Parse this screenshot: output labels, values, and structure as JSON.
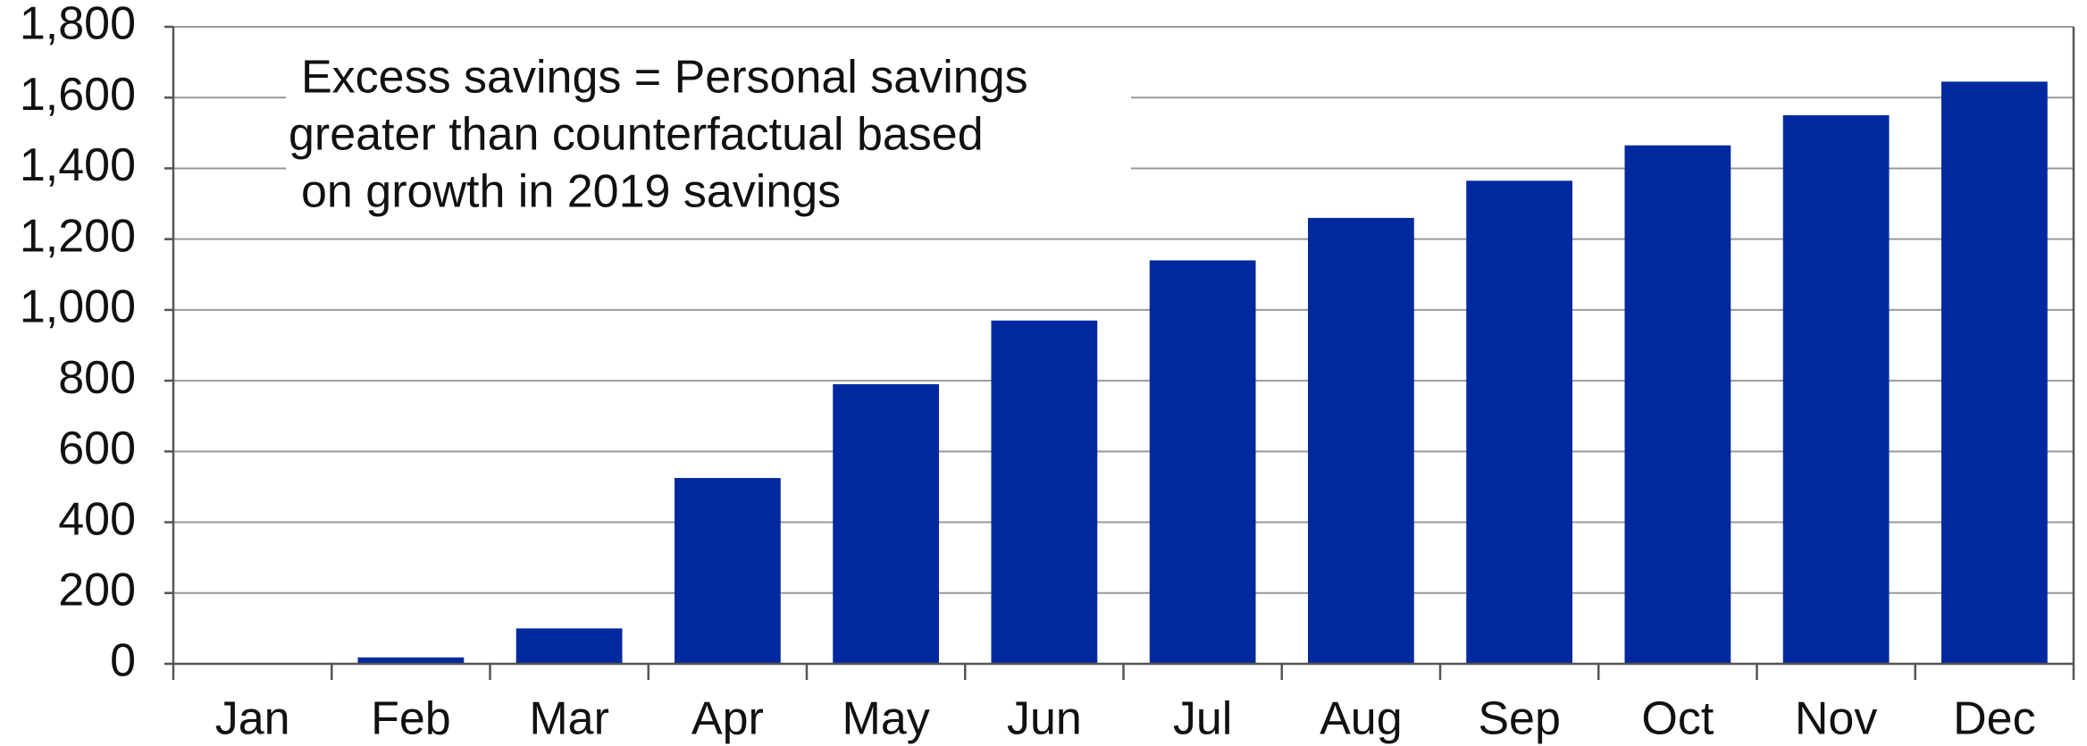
{
  "chart_data": {
    "type": "bar",
    "annotation": [
      "Excess savings = Personal savings",
      "greater than counterfactual based",
      "on growth in 2019 savings"
    ],
    "categories": [
      "Jan",
      "Feb",
      "Mar",
      "Apr",
      "May",
      "Jun",
      "Jul",
      "Aug",
      "Sep",
      "Oct",
      "Nov",
      "Dec"
    ],
    "values": [
      0,
      18,
      100,
      525,
      790,
      970,
      1140,
      1260,
      1365,
      1465,
      1550,
      1645
    ],
    "color": "#0029a0",
    "ylim": [
      0,
      1800
    ],
    "yticks": [
      0,
      200,
      400,
      600,
      800,
      {
        "value": 1000,
        "label": "1,000"
      },
      {
        "value": 1200,
        "label": "1,200"
      },
      {
        "value": 1400,
        "label": "1,400"
      },
      {
        "value": 1600,
        "label": "1,600"
      },
      {
        "value": 1800,
        "label": "1,800"
      }
    ],
    "grid": true
  }
}
